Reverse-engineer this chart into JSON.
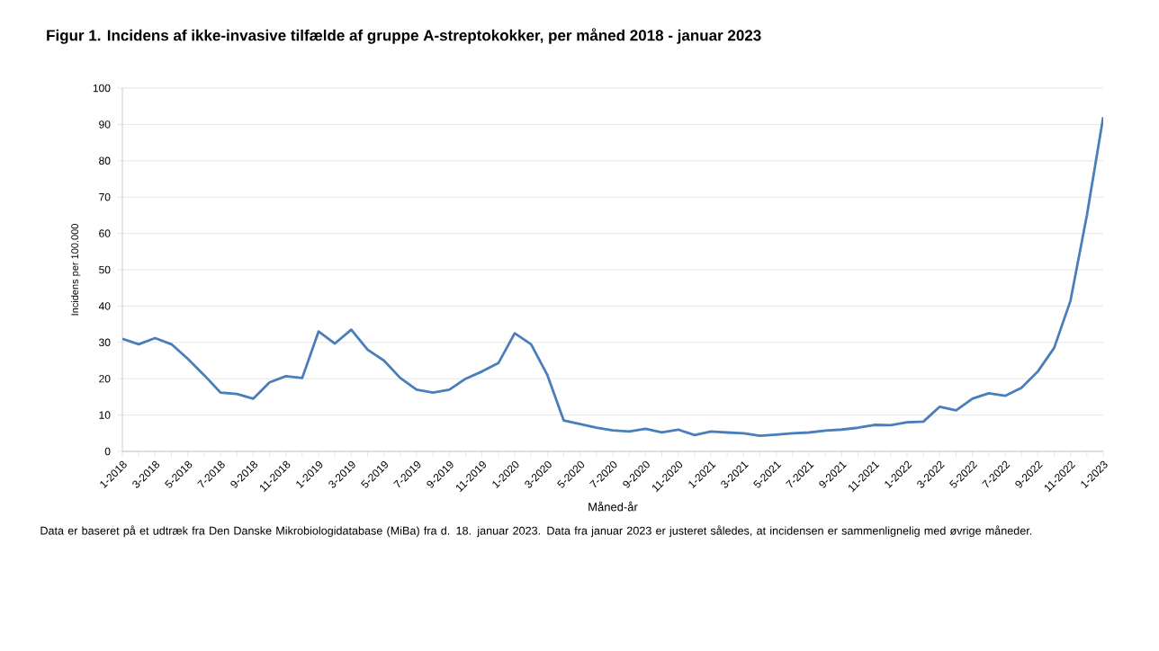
{
  "chart_data": {
    "type": "line",
    "title": "Figur 1. Incidens af ikke-invasive tilfælde af gruppe A-streptokokker, per måned 2018 - januar 2023",
    "xlabel": "Måned-år",
    "ylabel": "Incidens per 100.000",
    "categories": [
      "1-2018",
      null,
      "3-2018",
      null,
      "5-2018",
      null,
      "7-2018",
      null,
      "9-2018",
      null,
      "11-2018",
      null,
      "1-2019",
      null,
      "3-2019",
      null,
      "5-2019",
      null,
      "7-2019",
      null,
      "9-2019",
      null,
      "11-2019",
      null,
      "1-2020",
      null,
      "3-2020",
      null,
      "5-2020",
      null,
      "7-2020",
      null,
      "9-2020",
      null,
      "11-2020",
      null,
      "1-2021",
      null,
      "3-2021",
      null,
      "5-2021",
      null,
      "7-2021",
      null,
      "9-2021",
      null,
      "11-2021",
      null,
      "1-2022",
      null,
      "3-2022",
      null,
      "5-2022",
      null,
      "7-2022",
      null,
      "9-2022",
      null,
      "11-2022",
      null,
      "1-2023"
    ],
    "series": [
      {
        "color": "#4a7ebb",
        "values": [
          31,
          29.5,
          31.2,
          29.5,
          25.5,
          21,
          16.2,
          15.8,
          14.5,
          19,
          20.7,
          20.2,
          33,
          29.7,
          33.5,
          28,
          25,
          20.2,
          17,
          16.2,
          17,
          20,
          22,
          24.3,
          32.5,
          29.5,
          21,
          8.5,
          7.5,
          6.5,
          5.8,
          5.5,
          6.2,
          5.2,
          6,
          4.5,
          5.5,
          5.2,
          5,
          4.3,
          4.6,
          5,
          5.2,
          5.7,
          6,
          6.5,
          7.3,
          7.2,
          8,
          8.2,
          12.3,
          11.3,
          14.5,
          16,
          15.3,
          17.5,
          22,
          28.5,
          41.5,
          65,
          92
        ]
      }
    ],
    "ylim": [
      0,
      100
    ],
    "yticks": [
      0,
      10,
      20,
      30,
      40,
      50,
      60,
      70,
      80,
      90,
      100
    ],
    "grid": "y",
    "marker": "none",
    "line_style": "solid",
    "annotations": [
      "Data er baseret på et udtræk fra Den Danske Mikrobiologidatabase (MiBa) fra d. 18. januar 2023.  Data fra januar 2023  er justeret således, at incidensen er sammenlignelig med øvrige måneder."
    ]
  }
}
